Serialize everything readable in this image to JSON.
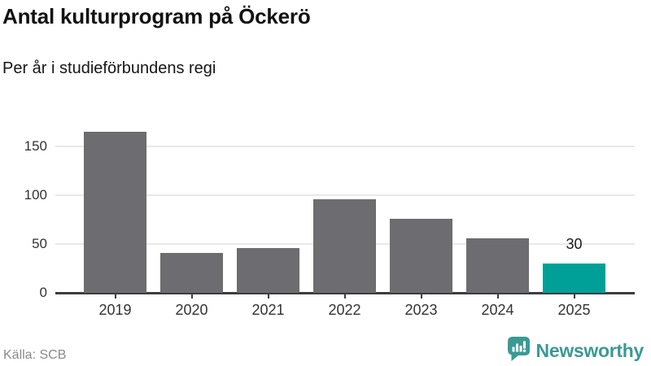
{
  "header": {
    "title": "Antal kulturprogram på Öckerö",
    "subtitle": "Per år i studieförbundens regi"
  },
  "footer": {
    "source": "Källa: SCB",
    "logo_text": "Newsworthy",
    "logo_icon": "newsworthy-speech-bubble-chart-icon"
  },
  "colors": {
    "bar_default": "#6c6c71",
    "bar_highlight": "#00a099",
    "logo_teal": "#3a9a93",
    "gridline": "#e8e8e8",
    "axis_line": "#3d3d3d",
    "tick_label": "#333333",
    "value_label": "#1a1a1a"
  },
  "chart_data": {
    "type": "bar",
    "title": "Antal kulturprogram på Öckerö",
    "subtitle": "Per år i studieförbundens regi",
    "categories": [
      "2019",
      "2020",
      "2021",
      "2022",
      "2023",
      "2024",
      "2025"
    ],
    "values": [
      165,
      41,
      46,
      96,
      76,
      56,
      30
    ],
    "highlight_index": 6,
    "data_labels": {
      "6": "30"
    },
    "xlabel": "",
    "ylabel": "",
    "yticks": [
      0,
      50,
      100,
      150
    ],
    "ylim": [
      0,
      175
    ],
    "grid": "horizontal-only",
    "legend": "none",
    "source": "Källa: SCB"
  }
}
